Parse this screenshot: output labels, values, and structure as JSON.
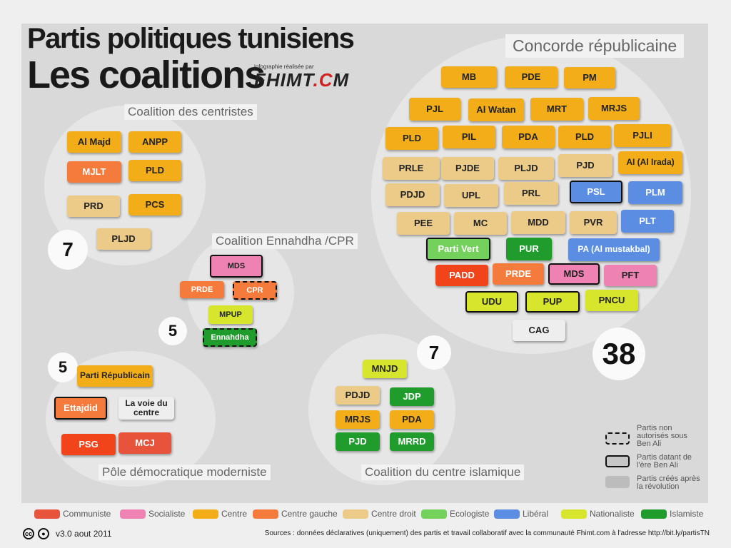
{
  "header": {
    "title_line1": "Partis politiques tunisiens",
    "title_line2": "Les coalitions",
    "credit": "infographie réalisée par",
    "logo": "Fhimt.Com"
  },
  "colors": {
    "communiste": "#e8533b",
    "socialiste": "#ee82b2",
    "centre": "#f2ad18",
    "centre_gauche": "#f47b3c",
    "centre_droit": "#eccb88",
    "ecologiste": "#74d15b",
    "liberal": "#5b8ee2",
    "nationaliste": "#d7e52d",
    "islamiste": "#1f9c2b",
    "nouveau": "#d9d9d9",
    "padd": "#f2441a",
    "cag": "#eeeeee"
  },
  "groups": [
    {
      "name": "Coalition des centristes",
      "count": "7",
      "parties": [
        {
          "label": "Al Majd",
          "family": "centre"
        },
        {
          "label": "ANPP",
          "family": "centre"
        },
        {
          "label": "MJLT",
          "family": "centre_gauche"
        },
        {
          "label": "PLD",
          "family": "centre"
        },
        {
          "label": "PRD",
          "family": "centre_droit"
        },
        {
          "label": "PCS",
          "family": "centre"
        },
        {
          "label": "PLJD",
          "family": "centre_droit"
        }
      ]
    },
    {
      "name": "Coalition Ennahdha /CPR",
      "count": "5",
      "parties": [
        {
          "label": "MDS",
          "family": "socialiste",
          "status": "old"
        },
        {
          "label": "PRDE",
          "family": "centre_gauche"
        },
        {
          "label": "CPR",
          "family": "centre_gauche",
          "status": "dashed"
        },
        {
          "label": "MPUP",
          "family": "nationaliste"
        },
        {
          "label": "Ennahdha",
          "family": "islamiste",
          "status": "dashed"
        }
      ]
    },
    {
      "name": "Pôle démocratique moderniste",
      "count": "5",
      "parties": [
        {
          "label": "Parti Républicain",
          "family": "centre"
        },
        {
          "label": "Ettajdid",
          "family": "centre_gauche",
          "status": "old"
        },
        {
          "label": "La voie du centre",
          "family": "cag"
        },
        {
          "label": "PSG",
          "family": "padd"
        },
        {
          "label": "MCJ",
          "family": "communiste"
        }
      ]
    },
    {
      "name": "Coalition du centre islamique",
      "count": "7",
      "parties": [
        {
          "label": "MNJD",
          "family": "nationaliste"
        },
        {
          "label": "PDJD",
          "family": "centre_droit"
        },
        {
          "label": "JDP",
          "family": "islamiste"
        },
        {
          "label": "MRJS",
          "family": "centre"
        },
        {
          "label": "PDA",
          "family": "centre"
        },
        {
          "label": "PJD",
          "family": "islamiste"
        },
        {
          "label": "MRRD",
          "family": "islamiste"
        }
      ]
    },
    {
      "name": "Concorde républicaine",
      "count": "38",
      "parties": [
        {
          "label": "MB",
          "family": "centre"
        },
        {
          "label": "PDE",
          "family": "centre"
        },
        {
          "label": "PM",
          "family": "centre"
        },
        {
          "label": "PJL",
          "family": "centre"
        },
        {
          "label": "Al Watan",
          "family": "centre"
        },
        {
          "label": "MRT",
          "family": "centre"
        },
        {
          "label": "MRJS",
          "family": "centre"
        },
        {
          "label": "PLD",
          "family": "centre"
        },
        {
          "label": "PIL",
          "family": "centre"
        },
        {
          "label": "PDA",
          "family": "centre"
        },
        {
          "label": "PLD",
          "family": "centre"
        },
        {
          "label": "PJLI",
          "family": "centre"
        },
        {
          "label": "PRLE",
          "family": "centre_droit"
        },
        {
          "label": "PJDE",
          "family": "centre_droit"
        },
        {
          "label": "PLJD",
          "family": "centre_droit"
        },
        {
          "label": "PJD",
          "family": "centre_droit"
        },
        {
          "label": "AI (Al Irada)",
          "family": "centre"
        },
        {
          "label": "PDJD",
          "family": "centre_droit"
        },
        {
          "label": "UPL",
          "family": "centre_droit"
        },
        {
          "label": "PRL",
          "family": "centre_droit"
        },
        {
          "label": "PSL",
          "family": "liberal",
          "status": "old"
        },
        {
          "label": "PLM",
          "family": "liberal"
        },
        {
          "label": "PEE",
          "family": "centre_droit"
        },
        {
          "label": "MC",
          "family": "centre_droit"
        },
        {
          "label": "MDD",
          "family": "centre_droit"
        },
        {
          "label": "PVR",
          "family": "centre_droit"
        },
        {
          "label": "PLT",
          "family": "liberal"
        },
        {
          "label": "Parti Vert",
          "family": "ecologiste",
          "status": "old"
        },
        {
          "label": "PUR",
          "family": "islamiste"
        },
        {
          "label": "PA (Al mustakbal)",
          "family": "liberal"
        },
        {
          "label": "PADD",
          "family": "padd"
        },
        {
          "label": "PRDE",
          "family": "centre_gauche"
        },
        {
          "label": "MDS",
          "family": "socialiste",
          "status": "old"
        },
        {
          "label": "PFT",
          "family": "socialiste"
        },
        {
          "label": "UDU",
          "family": "nationaliste",
          "status": "old"
        },
        {
          "label": "PUP",
          "family": "nationaliste",
          "status": "old"
        },
        {
          "label": "PNCU",
          "family": "nationaliste"
        },
        {
          "label": "CAG",
          "family": "cag"
        }
      ]
    }
  ],
  "status_legend": [
    {
      "label": "Partis non autorisés  sous Ben Ali",
      "style": "dashed"
    },
    {
      "label": "Partis datant de l'ère Ben Ali",
      "style": "solid"
    },
    {
      "label": "Partis créés après la révolution",
      "style": "none"
    }
  ],
  "family_legend": [
    {
      "label": "Communiste",
      "family": "communiste"
    },
    {
      "label": "Socialiste",
      "family": "socialiste"
    },
    {
      "label": "Centre",
      "family": "centre"
    },
    {
      "label": "Centre gauche",
      "family": "centre_gauche"
    },
    {
      "label": "Centre droit",
      "family": "centre_droit"
    },
    {
      "label": "Ecologiste",
      "family": "ecologiste"
    },
    {
      "label": "Libéral",
      "family": "liberal"
    },
    {
      "label": "Nationaliste",
      "family": "nationaliste"
    },
    {
      "label": "Islamiste",
      "family": "islamiste"
    }
  ],
  "footer": {
    "version": "v3.0 aout 2011",
    "source": "Sources : données déclaratives (uniquement) des partis et travail collaboratif avec la communauté Fhimt.com à l'adresse http://bit.ly/partisTN"
  }
}
